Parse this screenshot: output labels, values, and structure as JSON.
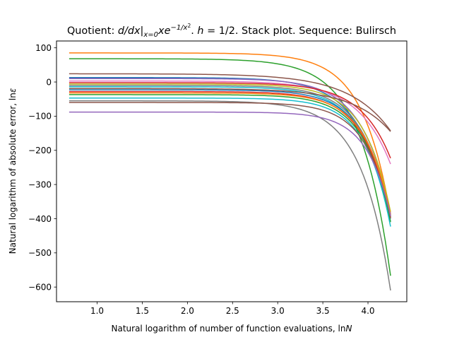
{
  "chart_data": {
    "type": "line",
    "title": "Quotient: d/dx|x=0 xe^(−1/x²). h = 1/2. Stack plot. Sequence: Bulirsch",
    "title_parts": {
      "prefix": "Quotient: ",
      "d_over_dx": "d/dx",
      "bar": "|",
      "subscript": "x=0",
      "x_var": "x",
      "e": "e",
      "exponent": "−1/x",
      "exponent_power": "2",
      "mid": ". ",
      "h_label": "h",
      "h_value": " = 1/2",
      "suffix": ". Stack plot. Sequence: Bulirsch"
    },
    "xlabel": "Natural logarithm of number of function evaluations, lnN",
    "xlabel_parts": {
      "text": "Natural logarithm of number of function evaluations, ln",
      "italic": "N"
    },
    "ylabel": "Natural logarithm of absolute error, lnε",
    "ylabel_parts": {
      "text": "Natural logarithm of absolute error, ln",
      "italic": "ε"
    },
    "xlim": [
      0.55,
      4.43
    ],
    "ylim": [
      -643,
      120
    ],
    "x_ticks": [
      1.0,
      1.5,
      2.0,
      2.5,
      3.0,
      3.5,
      4.0
    ],
    "x_tick_labels": [
      "1.0",
      "1.5",
      "2.0",
      "2.5",
      "3.0",
      "3.5",
      "4.0"
    ],
    "y_ticks": [
      100,
      0,
      -100,
      -200,
      -300,
      -400,
      -500,
      -600
    ],
    "y_tick_labels": [
      "100",
      "0",
      "−100",
      "−200",
      "−300",
      "−400",
      "−500",
      "−600"
    ],
    "x_start": 0.69,
    "x_end": 4.25,
    "grid": false,
    "legend": "none",
    "series": [
      {
        "color": "#ff7f0e",
        "start": 85,
        "end": -390,
        "k": 3.2
      },
      {
        "color": "#2ca02c",
        "start": 68,
        "end": -567,
        "k": 3.0
      },
      {
        "color": "#8c564b",
        "start": 24,
        "end": -143,
        "k": 2.2
      },
      {
        "color": "#1f77b4",
        "start": 13,
        "end": -400,
        "k": 3.0
      },
      {
        "color": "#9467bd",
        "start": 10,
        "end": -385,
        "k": 3.2
      },
      {
        "color": "#e377c2",
        "start": 3,
        "end": -240,
        "k": 2.8
      },
      {
        "color": "#d62728",
        "start": -2,
        "end": -223,
        "k": 3.0
      },
      {
        "color": "#bcbd22",
        "start": -6,
        "end": -380,
        "k": 3.4
      },
      {
        "color": "#7f7f7f",
        "start": -10,
        "end": -395,
        "k": 3.3
      },
      {
        "color": "#17becf",
        "start": -14,
        "end": -408,
        "k": 3.3
      },
      {
        "color": "#8c564b",
        "start": -19,
        "end": -145,
        "k": 2.4
      },
      {
        "color": "#1f77b4",
        "start": -23,
        "end": -392,
        "k": 3.4
      },
      {
        "color": "#d62728",
        "start": -28,
        "end": -398,
        "k": 3.4
      },
      {
        "color": "#ff7f0e",
        "start": -32,
        "end": -388,
        "k": 3.5
      },
      {
        "color": "#2ca02c",
        "start": -37,
        "end": -410,
        "k": 3.5
      },
      {
        "color": "#17becf",
        "start": -47,
        "end": -423,
        "k": 3.6
      },
      {
        "color": "#7f7f7f",
        "start": -55,
        "end": -610,
        "k": 3.1
      },
      {
        "color": "#8c564b",
        "start": -60,
        "end": -396,
        "k": 3.6
      },
      {
        "color": "#9467bd",
        "start": -88,
        "end": -392,
        "k": 3.8
      }
    ]
  }
}
